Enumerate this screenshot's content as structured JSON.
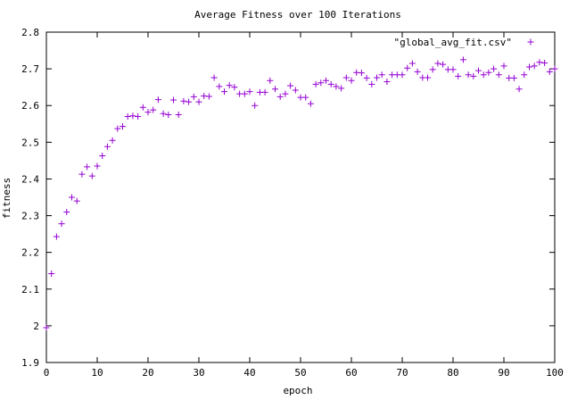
{
  "chart_data": {
    "type": "scatter",
    "title": "Average Fitness over 100 Iterations",
    "xlabel": "epoch",
    "ylabel": "fitness",
    "xlim": [
      0,
      100
    ],
    "ylim": [
      1.9,
      2.8
    ],
    "xticks": [
      0,
      10,
      20,
      30,
      40,
      50,
      60,
      70,
      80,
      90,
      100
    ],
    "yticks": [
      1.9,
      2.0,
      2.1,
      2.2,
      2.3,
      2.4,
      2.5,
      2.6,
      2.7,
      2.8
    ],
    "xtick_labels": [
      "0",
      "10",
      "20",
      "30",
      "40",
      "50",
      "60",
      "70",
      "80",
      "90",
      "100"
    ],
    "ytick_labels": [
      "1.9",
      "2",
      "2.1",
      "2.2",
      "2.3",
      "2.4",
      "2.5",
      "2.6",
      "2.7",
      "2.8"
    ],
    "legend_position": "top-right",
    "grid": false,
    "marker": "+",
    "series": [
      {
        "name": "\"global_avg_fit.csv\"",
        "color": "#9400d3",
        "x": [
          0,
          1,
          2,
          3,
          4,
          5,
          6,
          7,
          8,
          9,
          10,
          11,
          12,
          13,
          14,
          15,
          16,
          17,
          18,
          19,
          20,
          21,
          22,
          23,
          24,
          25,
          26,
          27,
          28,
          29,
          30,
          31,
          32,
          33,
          34,
          35,
          36,
          37,
          38,
          39,
          40,
          41,
          42,
          43,
          44,
          45,
          46,
          47,
          48,
          49,
          50,
          51,
          52,
          53,
          54,
          55,
          56,
          57,
          58,
          59,
          60,
          61,
          62,
          63,
          64,
          65,
          66,
          67,
          68,
          69,
          70,
          71,
          72,
          73,
          74,
          75,
          76,
          77,
          78,
          79,
          80,
          81,
          82,
          83,
          84,
          85,
          86,
          87,
          88,
          89,
          90,
          91,
          92,
          93,
          94,
          95,
          96,
          97,
          98,
          99,
          100
        ],
        "y": [
          1.995,
          2.142,
          2.243,
          2.278,
          2.31,
          2.35,
          2.34,
          2.413,
          2.433,
          2.408,
          2.435,
          2.463,
          2.488,
          2.505,
          2.537,
          2.543,
          2.57,
          2.572,
          2.57,
          2.595,
          2.582,
          2.588,
          2.616,
          2.578,
          2.575,
          2.615,
          2.575,
          2.612,
          2.61,
          2.624,
          2.61,
          2.626,
          2.625,
          2.676,
          2.652,
          2.638,
          2.655,
          2.65,
          2.632,
          2.632,
          2.638,
          2.6,
          2.636,
          2.636,
          2.668,
          2.645,
          2.624,
          2.632,
          2.654,
          2.642,
          2.622,
          2.622,
          2.605,
          2.658,
          2.662,
          2.668,
          2.658,
          2.652,
          2.647,
          2.676,
          2.668,
          2.69,
          2.689,
          2.675,
          2.658,
          2.676,
          2.684,
          2.665,
          2.684,
          2.684,
          2.684,
          2.702,
          2.715,
          2.692,
          2.676,
          2.676,
          2.698,
          2.715,
          2.712,
          2.698,
          2.698,
          2.68,
          2.725,
          2.684,
          2.68,
          2.695,
          2.684,
          2.69,
          2.7,
          2.684,
          2.708,
          2.675,
          2.675,
          2.645,
          2.684,
          2.705,
          2.708,
          2.718,
          2.716,
          2.692,
          2.7
        ]
      }
    ]
  }
}
